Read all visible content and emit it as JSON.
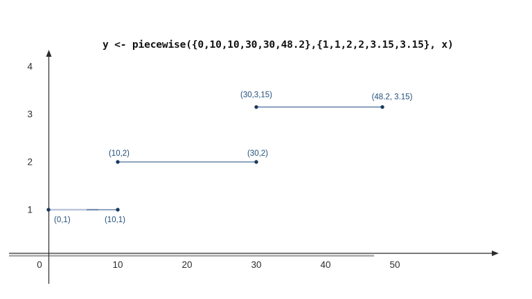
{
  "window": {
    "background": "#ffffff"
  },
  "title": {
    "text": "y <- piecewise({0,10,10,30,30,48.2},{1,1,2,2,3.15,3.15}, x)"
  },
  "colors": {
    "title_text": "#111111",
    "axis_line": "#2b2b2b",
    "axis_overlap_line": "#a9a9a9",
    "tick_label": "#2e2e2e",
    "segment_line": "#4a6d99",
    "segment_line_light": "#b9c6d9",
    "data_point": "#1b3a5c",
    "point_label": "#1f4e79"
  },
  "chart_data": {
    "type": "line",
    "title": "y <- piecewise({0,10,10,30,30,48.2},{1,1,2,2,3.15,3.15}, x)",
    "xlabel": "",
    "ylabel": "",
    "xlim": [
      0,
      62
    ],
    "ylim": [
      0,
      4.3
    ],
    "x_ticks": [
      0,
      10,
      20,
      30,
      40,
      50
    ],
    "y_ticks": [
      1,
      2,
      3,
      4
    ],
    "grid": false,
    "legend": false,
    "description": "Piecewise-constant step function plotted as three horizontal segments with labeled endpoints",
    "segments": [
      {
        "x": [
          0,
          10
        ],
        "y": [
          1,
          1
        ],
        "style": "light-overlap",
        "labels": [
          {
            "text": "(0,1)",
            "at": "start",
            "anchor": "start",
            "dx": 8,
            "dy": 18
          },
          {
            "text": "(10,1)",
            "at": "end",
            "anchor": "middle",
            "dx": -4,
            "dy": 18
          }
        ]
      },
      {
        "x": [
          10,
          30
        ],
        "y": [
          2,
          2
        ],
        "style": "solid",
        "labels": [
          {
            "text": "(10,2)",
            "at": "start",
            "anchor": "middle",
            "dx": 2,
            "dy": -9
          },
          {
            "text": "(30,2)",
            "at": "end",
            "anchor": "middle",
            "dx": 2,
            "dy": -9
          }
        ]
      },
      {
        "x": [
          30,
          48.2
        ],
        "y": [
          3.15,
          3.15
        ],
        "style": "solid",
        "labels": [
          {
            "text": "(30,3,15)",
            "at": "start",
            "anchor": "middle",
            "dx": 0,
            "dy": -14
          },
          {
            "text": "(48.2, 3.15)",
            "at": "end",
            "anchor": "middle",
            "dx": 14,
            "dy": -11
          }
        ]
      }
    ]
  }
}
